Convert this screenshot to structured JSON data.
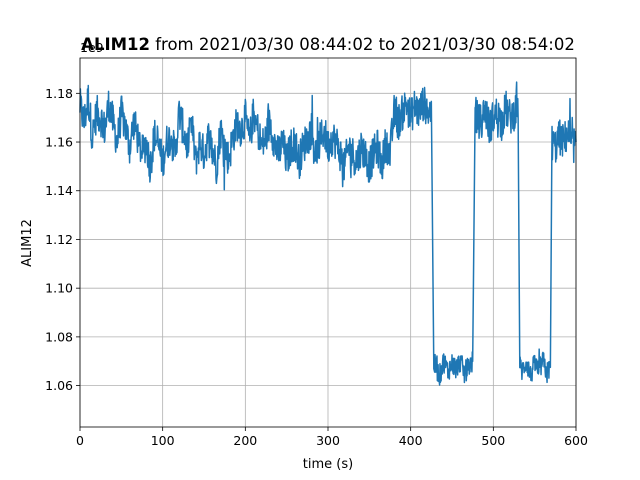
{
  "chart_data": {
    "type": "line",
    "title": {
      "bold": "ALIM12",
      "rest": " from 2021/03/30 08:44:02 to 2021/03/30 08:54:02"
    },
    "xlabel": "time (s)",
    "ylabel": "ALIM12",
    "offset_text": "1e9",
    "xlim": [
      0,
      600
    ],
    "ylim": [
      1.043,
      1.1945
    ],
    "xticks": [
      0,
      100,
      200,
      300,
      400,
      500,
      600
    ],
    "xtick_labels": [
      "0",
      "100",
      "200",
      "300",
      "400",
      "500",
      "600"
    ],
    "yticks": [
      1.06,
      1.08,
      1.1,
      1.12,
      1.14,
      1.16,
      1.18
    ],
    "ytick_labels": [
      "1.06",
      "1.08",
      "1.10",
      "1.12",
      "1.14",
      "1.16",
      "1.18"
    ],
    "grid": true,
    "series": [
      {
        "color": "#1f77b4",
        "x": [
          0,
          5,
          10,
          15,
          20,
          25,
          30,
          35,
          40,
          45,
          50,
          55,
          60,
          65,
          70,
          75,
          80,
          85,
          90,
          95,
          100,
          105,
          110,
          115,
          120,
          125,
          130,
          135,
          140,
          145,
          150,
          155,
          160,
          165,
          170,
          175,
          180,
          185,
          190,
          195,
          200,
          205,
          210,
          215,
          220,
          225,
          230,
          235,
          240,
          245,
          250,
          255,
          260,
          265,
          270,
          275,
          280,
          285,
          290,
          295,
          300,
          305,
          310,
          315,
          320,
          325,
          330,
          335,
          340,
          345,
          350,
          355,
          360,
          365,
          370,
          375,
          380,
          385,
          390,
          395,
          400,
          405,
          410,
          415,
          420,
          425,
          428,
          430,
          435,
          440,
          445,
          450,
          455,
          460,
          465,
          470,
          475,
          478,
          480,
          485,
          490,
          495,
          500,
          505,
          510,
          515,
          520,
          525,
          530,
          532,
          535,
          540,
          545,
          550,
          555,
          560,
          565,
          569,
          571,
          575,
          580,
          585,
          590,
          595,
          600
        ],
        "y": [
          1.175,
          1.168,
          1.178,
          1.162,
          1.172,
          1.17,
          1.165,
          1.176,
          1.168,
          1.16,
          1.172,
          1.166,
          1.158,
          1.168,
          1.162,
          1.155,
          1.16,
          1.15,
          1.163,
          1.158,
          1.152,
          1.16,
          1.162,
          1.155,
          1.172,
          1.165,
          1.158,
          1.168,
          1.152,
          1.16,
          1.155,
          1.162,
          1.158,
          1.15,
          1.165,
          1.158,
          1.153,
          1.162,
          1.168,
          1.165,
          1.17,
          1.16,
          1.172,
          1.165,
          1.158,
          1.162,
          1.168,
          1.16,
          1.155,
          1.16,
          1.152,
          1.158,
          1.16,
          1.152,
          1.158,
          1.162,
          1.165,
          1.155,
          1.16,
          1.165,
          1.158,
          1.162,
          1.16,
          1.155,
          1.15,
          1.158,
          1.155,
          1.152,
          1.158,
          1.155,
          1.15,
          1.155,
          1.158,
          1.15,
          1.16,
          1.155,
          1.172,
          1.168,
          1.172,
          1.176,
          1.17,
          1.175,
          1.172,
          1.176,
          1.174,
          1.172,
          1.069,
          1.068,
          1.064,
          1.07,
          1.066,
          1.069,
          1.067,
          1.07,
          1.065,
          1.068,
          1.07,
          1.172,
          1.17,
          1.168,
          1.174,
          1.166,
          1.17,
          1.172,
          1.168,
          1.174,
          1.17,
          1.172,
          1.175,
          1.068,
          1.066,
          1.07,
          1.064,
          1.069,
          1.066,
          1.07,
          1.065,
          1.068,
          1.16,
          1.158,
          1.162,
          1.16,
          1.164,
          1.158,
          1.16
        ]
      }
    ]
  }
}
